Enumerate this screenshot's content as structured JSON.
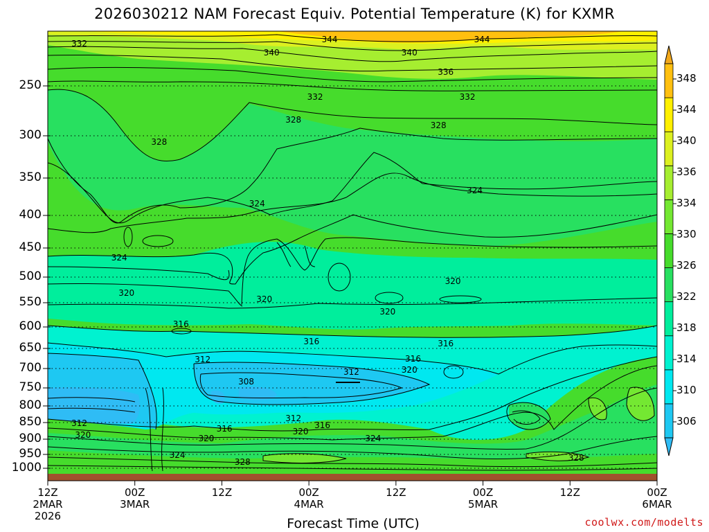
{
  "chart_data": {
    "type": "heatmap",
    "title": "2026030212 NAM Forecast Equiv. Potential Temperature (K) for KXMR",
    "xlabel": "Forecast Time (UTC)",
    "ylabel": "",
    "credit": "coolwx.com/modelts",
    "y_axis": {
      "scale": "pressure (inverted, log-like)",
      "ticks": [
        250,
        300,
        350,
        400,
        450,
        500,
        550,
        600,
        650,
        700,
        750,
        800,
        850,
        900,
        950,
        1000
      ],
      "range": [
        200,
        1020
      ]
    },
    "x_axis": {
      "range_hours": [
        0,
        84
      ],
      "ticks": [
        {
          "hour": 0,
          "lines": [
            "12Z",
            "2MAR",
            "2026"
          ]
        },
        {
          "hour": 12,
          "lines": [
            "00Z",
            "3MAR"
          ]
        },
        {
          "hour": 24,
          "lines": [
            "12Z"
          ]
        },
        {
          "hour": 36,
          "lines": [
            "00Z",
            "4MAR"
          ]
        },
        {
          "hour": 48,
          "lines": [
            "12Z"
          ]
        },
        {
          "hour": 60,
          "lines": [
            "00Z",
            "5MAR"
          ]
        },
        {
          "hour": 72,
          "lines": [
            "12Z"
          ]
        },
        {
          "hour": 84,
          "lines": [
            "00Z",
            "6MAR"
          ]
        }
      ]
    },
    "colorbar": {
      "levels": [
        306,
        310,
        314,
        318,
        322,
        326,
        330,
        334,
        336,
        340,
        344,
        348
      ],
      "colors": [
        "#2fbcf5",
        "#1ec8f2",
        "#00e8f0",
        "#00f2d0",
        "#00ee9c",
        "#28e060",
        "#46dc2c",
        "#74e832",
        "#a6ee30",
        "#dcf020",
        "#fff000",
        "#ffc010",
        "#f2a81c"
      ],
      "units": "K"
    },
    "contour_labels": [
      {
        "hour": 4.5,
        "p": 212,
        "v": 332
      },
      {
        "hour": 31,
        "p": 220,
        "v": 340
      },
      {
        "hour": 39,
        "p": 208,
        "v": 344
      },
      {
        "hour": 50,
        "p": 220,
        "v": 340
      },
      {
        "hour": 60,
        "p": 208,
        "v": 344
      },
      {
        "hour": 55,
        "p": 238,
        "v": 336
      },
      {
        "hour": 37,
        "p": 262,
        "v": 332
      },
      {
        "hour": 58,
        "p": 262,
        "v": 332
      },
      {
        "hour": 34,
        "p": 285,
        "v": 328
      },
      {
        "hour": 54,
        "p": 290,
        "v": 328
      },
      {
        "hour": 15.5,
        "p": 308,
        "v": 328
      },
      {
        "hour": 59,
        "p": 368,
        "v": 324
      },
      {
        "hour": 29,
        "p": 385,
        "v": 324
      },
      {
        "hour": 10,
        "p": 468,
        "v": 324
      },
      {
        "hour": 11,
        "p": 532,
        "v": 320
      },
      {
        "hour": 30,
        "p": 545,
        "v": 320
      },
      {
        "hour": 47,
        "p": 570,
        "v": 320
      },
      {
        "hour": 56,
        "p": 510,
        "v": 320
      },
      {
        "hour": 18.5,
        "p": 595,
        "v": 316
      },
      {
        "hour": 36.5,
        "p": 635,
        "v": 316
      },
      {
        "hour": 55,
        "p": 640,
        "v": 316
      },
      {
        "hour": 50.5,
        "p": 678,
        "v": 316
      },
      {
        "hour": 21.5,
        "p": 680,
        "v": 312
      },
      {
        "hour": 42,
        "p": 710,
        "v": 312
      },
      {
        "hour": 27.5,
        "p": 735,
        "v": 308
      },
      {
        "hour": 4.5,
        "p": 855,
        "v": 312
      },
      {
        "hour": 5,
        "p": 890,
        "v": 320
      },
      {
        "hour": 24.5,
        "p": 870,
        "v": 316
      },
      {
        "hour": 34,
        "p": 840,
        "v": 312
      },
      {
        "hour": 35,
        "p": 880,
        "v": 320
      },
      {
        "hour": 38,
        "p": 860,
        "v": 316
      },
      {
        "hour": 22,
        "p": 900,
        "v": 320
      },
      {
        "hour": 18,
        "p": 955,
        "v": 324
      },
      {
        "hour": 27,
        "p": 980,
        "v": 328
      },
      {
        "hour": 45,
        "p": 900,
        "v": 324
      },
      {
        "hour": 50,
        "p": 705,
        "v": 320
      },
      {
        "hour": 73,
        "p": 965,
        "v": 328
      }
    ]
  }
}
